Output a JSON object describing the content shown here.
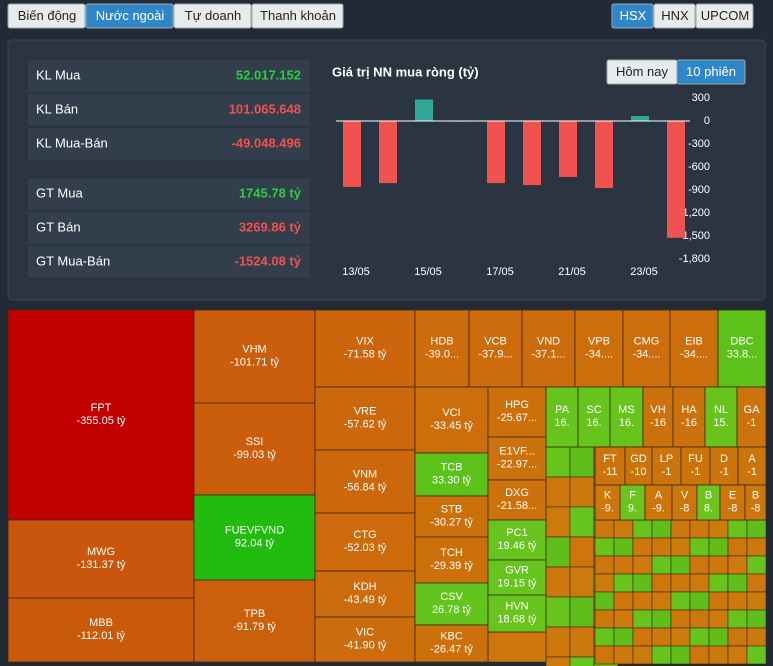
{
  "tabs": [
    "Biến động",
    "Nước ngoài",
    "Tự doanh",
    "Thanh khoản"
  ],
  "exchanges": [
    "HSX",
    "HNX",
    "UPCOM"
  ],
  "stats": [
    {
      "label": "KL Mua",
      "value": "52.017.152",
      "color": "#2ecc40"
    },
    {
      "label": "KL Bán",
      "value": "101.065.648",
      "color": "#f0524f"
    },
    {
      "label": "KL Mua-Bán",
      "value": "-49.048.496",
      "color": "#f0524f"
    },
    {
      "label": "GT Mua",
      "value": "1745.78 tỷ",
      "color": "#2ecc40"
    },
    {
      "label": "GT Bán",
      "value": "3269.86 tỷ",
      "color": "#f0524f"
    },
    {
      "label": "GT Mua-Bán",
      "value": "-1524.08 tỷ",
      "color": "#f0524f"
    }
  ],
  "period_buttons": [
    "Hôm nay",
    "10 phiên"
  ],
  "chart_data": {
    "type": "bar",
    "title": "Giá trị NN mua ròng (tỷ)",
    "categories": [
      "13/05",
      null,
      "15/05",
      null,
      "17/05",
      null,
      "21/05",
      null,
      "23/05",
      null
    ],
    "values": [
      -860,
      -810,
      280,
      5,
      -810,
      -835,
      -730,
      -875,
      65,
      -1524
    ],
    "colors": {
      "positive": "#2fa898",
      "negative": "#f0524f"
    },
    "ylim": [
      -1800,
      300
    ],
    "yticks": [
      300,
      0,
      -300,
      -600,
      -900,
      {
        "value": -1200,
        "label": "-1,200"
      },
      {
        "value": -1500,
        "label": "-1,500"
      },
      {
        "value": -1800,
        "label": "-1,800"
      }
    ]
  },
  "treemap": [
    {
      "symbol": "FPT",
      "value": "-355.05 tỷ",
      "color": "#c20000"
    },
    {
      "symbol": "MWG",
      "value": "-131.37 tỷ",
      "color": "#c9560c"
    },
    {
      "symbol": "MBB",
      "value": "-112.01 tỷ",
      "color": "#c95a0c"
    },
    {
      "symbol": "VHM",
      "value": "-101.71 tỷ",
      "color": "#cb5e0c"
    },
    {
      "symbol": "SSI",
      "value": "-99.03 tỷ",
      "color": "#cb5e0c"
    },
    {
      "symbol": "FUEVFVND",
      "value": "92.04 tỷ",
      "color": "#22bb10"
    },
    {
      "symbol": "TPB",
      "value": "-91.79 tỷ",
      "color": "#cb600c"
    },
    {
      "symbol": "VIX",
      "value": "-71.58 tỷ",
      "color": "#cc660c"
    },
    {
      "symbol": "VRE",
      "value": "-57.62 tỷ",
      "color": "#cc680c"
    },
    {
      "symbol": "VNM",
      "value": "-56.84 tỷ",
      "color": "#cc680c"
    },
    {
      "symbol": "CTG",
      "value": "-52.03 tỷ",
      "color": "#cc6a0c"
    },
    {
      "symbol": "KDH",
      "value": "-43.49 tỷ",
      "color": "#cc6c0c"
    },
    {
      "symbol": "VIC",
      "value": "-41.90 tỷ",
      "color": "#cc6c0c"
    },
    {
      "symbol": "HDB",
      "value": "-39.0...",
      "color": "#cc6c0c"
    },
    {
      "symbol": "VCB",
      "value": "-37.9...",
      "color": "#cc6c0c"
    },
    {
      "symbol": "VND",
      "value": "-37.1...",
      "color": "#cc6c0c"
    },
    {
      "symbol": "VPB",
      "value": "-34....",
      "color": "#cc6e0c"
    },
    {
      "symbol": "CMG",
      "value": "-34....",
      "color": "#cc6e0c"
    },
    {
      "symbol": "EIB",
      "value": "-34....",
      "color": "#cc6e0c"
    },
    {
      "symbol": "DBC",
      "value": "33.8...",
      "color": "#5cc21a"
    },
    {
      "symbol": "VCI",
      "value": "-33.45 tỷ",
      "color": "#cc6e0c"
    },
    {
      "symbol": "TCB",
      "value": "33.30 tỷ",
      "color": "#5cc21a"
    },
    {
      "symbol": "STB",
      "value": "-30.27 tỷ",
      "color": "#cc700c"
    },
    {
      "symbol": "TCH",
      "value": "-29.39 tỷ",
      "color": "#cc700c"
    },
    {
      "symbol": "CSV",
      "value": "26.78 tỷ",
      "color": "#62c41c"
    },
    {
      "symbol": "KBC",
      "value": "-26.47 tỷ",
      "color": "#cc700c"
    },
    {
      "symbol": "HPG",
      "value": "-25.67...",
      "color": "#cc700c"
    },
    {
      "symbol": "E1VF...",
      "value": "-22.97...",
      "color": "#cc720c"
    },
    {
      "symbol": "DXG",
      "value": "-21.58...",
      "color": "#cc720c"
    },
    {
      "symbol": "PC1",
      "value": "19.46 tỷ",
      "color": "#66c41c"
    },
    {
      "symbol": "GVR",
      "value": "19.15 tỷ",
      "color": "#66c41c"
    },
    {
      "symbol": "HVN",
      "value": "18.68 tỷ",
      "color": "#66c41c"
    },
    {
      "symbol": "PA",
      "value": "16.",
      "color": "#66c41c"
    },
    {
      "symbol": "SC",
      "value": "16.",
      "color": "#66c41c"
    },
    {
      "symbol": "MS",
      "value": "16.",
      "color": "#66c41c"
    },
    {
      "symbol": "VH",
      "value": "-16",
      "color": "#cc720c"
    },
    {
      "symbol": "HA",
      "value": "-16",
      "color": "#cc720c"
    },
    {
      "symbol": "NL",
      "value": "15.",
      "color": "#66c41c"
    },
    {
      "symbol": "GA",
      "value": "-1",
      "color": "#cc740c"
    },
    {
      "symbol": "FT",
      "value": "-11",
      "color": "#cc740c"
    },
    {
      "symbol": "GD",
      "value": "-10",
      "color": "#cc740c"
    },
    {
      "symbol": "LP",
      "value": "-1",
      "color": "#cc740c"
    },
    {
      "symbol": "FU",
      "value": "-1",
      "color": "#cc740c"
    },
    {
      "symbol": "D",
      "value": "-1",
      "color": "#cc740c"
    },
    {
      "symbol": "A",
      "value": "-1",
      "color": "#cc740c"
    },
    {
      "symbol": "K",
      "value": "-9.",
      "color": "#cc760c"
    },
    {
      "symbol": "F",
      "value": "9.",
      "color": "#6cc41e"
    },
    {
      "symbol": "A",
      "value": "-9.",
      "color": "#cc760c"
    },
    {
      "symbol": "V",
      "value": "-8",
      "color": "#cc760c"
    },
    {
      "symbol": "B",
      "value": "8.",
      "color": "#6cc41e"
    },
    {
      "symbol": "E",
      "value": "-8",
      "color": "#cc760c"
    },
    {
      "symbol": "B",
      "value": "-8",
      "color": "#cc760c"
    }
  ]
}
